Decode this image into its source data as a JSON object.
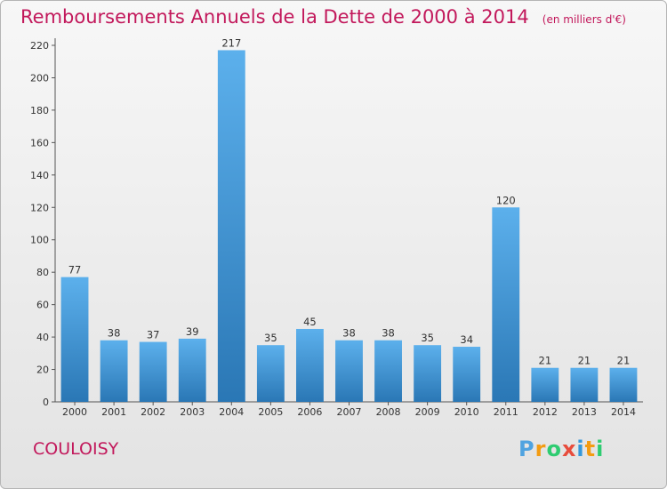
{
  "title": "Remboursements Annuels de la Dette de 2000 à 2014",
  "subtitle": "(en milliers d'€)",
  "commune": "COULOISY",
  "logo": {
    "letters": [
      "P",
      "r",
      "o",
      "x",
      "i",
      "t",
      "i"
    ],
    "colors": [
      "#4fa3e0",
      "#f39c12",
      "#2ecc71",
      "#e74c3c",
      "#3498db",
      "#f39c12",
      "#2ecc71"
    ]
  },
  "colors": {
    "title": "#c2185b",
    "bar_light": "#5cb0ec",
    "bar_dark": "#2a77b5"
  },
  "chart_data": {
    "type": "bar",
    "categories": [
      "2000",
      "2001",
      "2002",
      "2003",
      "2004",
      "2005",
      "2006",
      "2007",
      "2008",
      "2009",
      "2010",
      "2011",
      "2012",
      "2013",
      "2014"
    ],
    "values": [
      77,
      38,
      37,
      39,
      217,
      35,
      45,
      38,
      38,
      35,
      34,
      120,
      21,
      21,
      21
    ],
    "ylim": [
      0,
      220
    ],
    "yticks": [
      0,
      20,
      40,
      60,
      80,
      100,
      120,
      140,
      160,
      180,
      200,
      220
    ],
    "grid": false,
    "xlabel": "",
    "ylabel": ""
  }
}
